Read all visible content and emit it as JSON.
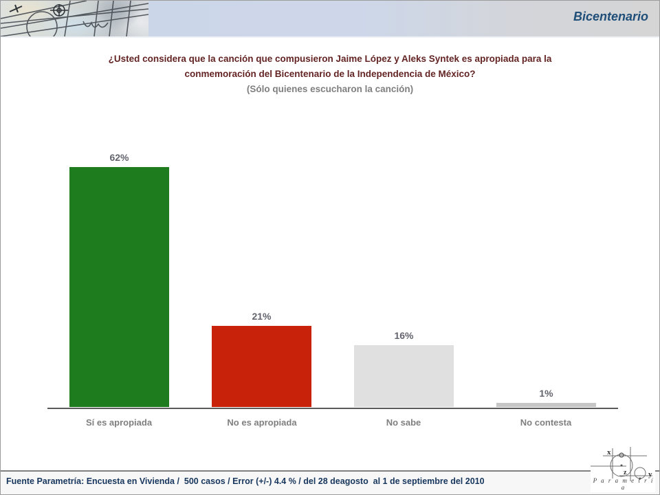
{
  "header": {
    "title": "Bicentenario"
  },
  "question": {
    "lines": [
      "¿Usted considera que la canción que compusieron Jaime López y Aleks Syntek es apropiada para la",
      "conmemoración del Bicentenario de la Independencia de México?",
      "(Sólo quienes escucharon la canción)"
    ]
  },
  "chart_data": {
    "type": "bar",
    "title": "¿Usted considera que la canción que compusieron Jaime López y Aleks Syntek es apropiada para la conmemoración del Bicentenario de la Independencia de México? (Sólo quienes escucharon la canción)",
    "categories": [
      "Sí es apropiada",
      "No es apropiada",
      "No sabe",
      "No contesta"
    ],
    "values": [
      62,
      21,
      16,
      1
    ],
    "labels": [
      "62%",
      "21%",
      "16%",
      "1%"
    ],
    "colors": [
      "#1e7b1e",
      "#c8220b",
      "#e0e0e0",
      "#c6c6c6"
    ],
    "xlabel": "",
    "ylabel": "",
    "ylim": [
      0,
      65
    ],
    "grid": false,
    "legend": false,
    "value_label_color": "#63636e",
    "category_label_color": "#7f7f7f",
    "axis_color": "#595959"
  },
  "footer": {
    "source": "Fuente Parametría: Encuesta en Vivienda /  500 casos / Error (+/-) 4.4 % / del 28 deagosto  al 1 de septiembre del 2010",
    "logo_word": "P a r a m e t r í a",
    "logo_letters": [
      "x",
      "z",
      "y"
    ]
  }
}
